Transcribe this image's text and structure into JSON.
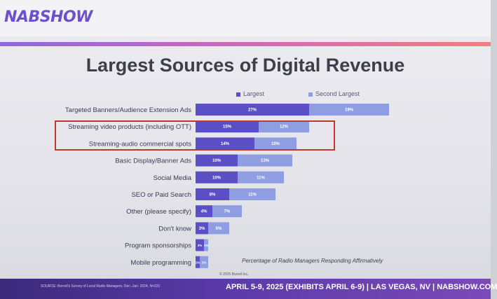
{
  "header": {
    "logo_text": "NABSHOW"
  },
  "title": "Largest Sources of Digital Revenue",
  "legend": {
    "largest": "Largest",
    "second": "Second Largest"
  },
  "colors": {
    "largest": "#5a4fc4",
    "second": "#8e9ee0",
    "accent_box": "#c0392b"
  },
  "footnote": "Percentage of Radio Managers Responding Affirmatively",
  "copyright": "© 2025 Borrell Inc.",
  "source": "SOURCE: Borrell's Survey of Local Radio Managers, Dec.-Jan. 2024, N=221",
  "event": "APRIL 5-9, 2025 (EXHIBITS APRIL 6-9) | LAS VEGAS, NV | NABSHOW.COM",
  "chart_data": {
    "type": "bar",
    "orientation": "horizontal",
    "stacked": true,
    "categories": [
      "Targeted Banners/Audience Extension Ads",
      "Streaming video products (including OTT)",
      "Streaming-audio commercial spots",
      "Basic Display/Banner Ads",
      "Social Media",
      "SEO or Paid Search",
      "Other (please specify)",
      "Don't know",
      "Program sponsorships",
      "Mobile programming"
    ],
    "series": [
      {
        "name": "Largest",
        "values": [
          27,
          15,
          14,
          10,
          10,
          8,
          4,
          3,
          2,
          1
        ],
        "labels": [
          "27%",
          "15%",
          "14%",
          "10%",
          "10%",
          "8%",
          "4%",
          "3%",
          "2%",
          "1%"
        ]
      },
      {
        "name": "Second Largest",
        "values": [
          19,
          12,
          10,
          13,
          11,
          11,
          7,
          5,
          1,
          2
        ],
        "labels": [
          "19%",
          "12%",
          "10%",
          "13%",
          "11%",
          "11%",
          "7%",
          "5%",
          "1%",
          "2%"
        ]
      }
    ],
    "highlighted_categories": [
      "Streaming video products (including OTT)",
      "Streaming-audio commercial spots"
    ]
  }
}
